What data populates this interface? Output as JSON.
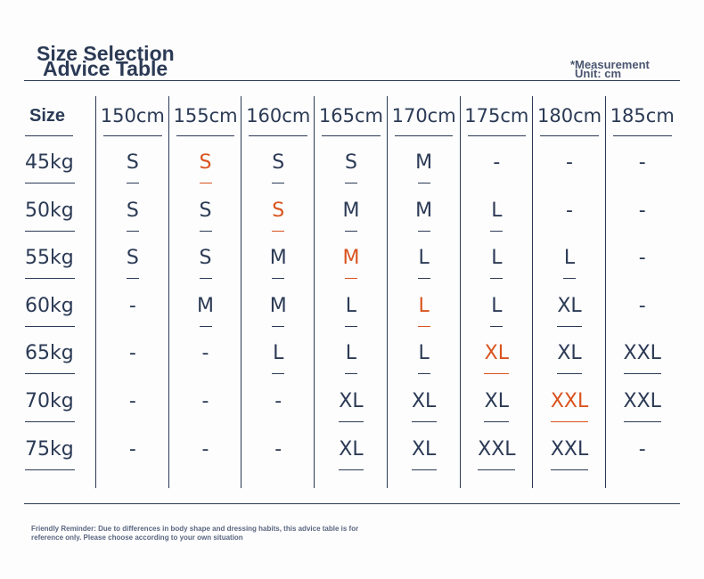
{
  "header": {
    "title": [
      "Size Selection",
      "Advice Table"
    ],
    "unit": [
      "*Measurement",
      "Unit: cm"
    ]
  },
  "table": {
    "corner": "Size",
    "columns": [
      "150cm",
      "155cm",
      "160cm",
      "165cm",
      "170cm",
      "175cm",
      "180cm",
      "185cm"
    ],
    "highlight_color": "#d9531e",
    "rows": [
      {
        "label": "45kg",
        "cells": [
          "S",
          "S",
          "S",
          "S",
          "M",
          "-",
          "-",
          "-"
        ],
        "highlight": 1
      },
      {
        "label": "50kg",
        "cells": [
          "S",
          "S",
          "S",
          "M",
          "M",
          "L",
          "-",
          "-"
        ],
        "highlight": 2
      },
      {
        "label": "55kg",
        "cells": [
          "S",
          "S",
          "M",
          "M",
          "L",
          "L",
          "L",
          "-"
        ],
        "highlight": 3
      },
      {
        "label": "60kg",
        "cells": [
          "-",
          "M",
          "M",
          "L",
          "L",
          "L",
          "XL",
          "-"
        ],
        "highlight": 4
      },
      {
        "label": "65kg",
        "cells": [
          "-",
          "-",
          "L",
          "L",
          "L",
          "XL",
          "XL",
          "XXL"
        ],
        "highlight": 5
      },
      {
        "label": "70kg",
        "cells": [
          "-",
          "-",
          "-",
          "XL",
          "XL",
          "XL",
          "XXL",
          "XXL"
        ],
        "highlight": 6
      },
      {
        "label": "75kg",
        "cells": [
          "-",
          "-",
          "-",
          "XL",
          "XL",
          "XXL",
          "XXL",
          "-"
        ]
      }
    ]
  },
  "footer": {
    "reminder": "Friendly Reminder: Due to differences in body shape and dressing habits, this advice table is for reference only. Please choose according to your own situation"
  }
}
